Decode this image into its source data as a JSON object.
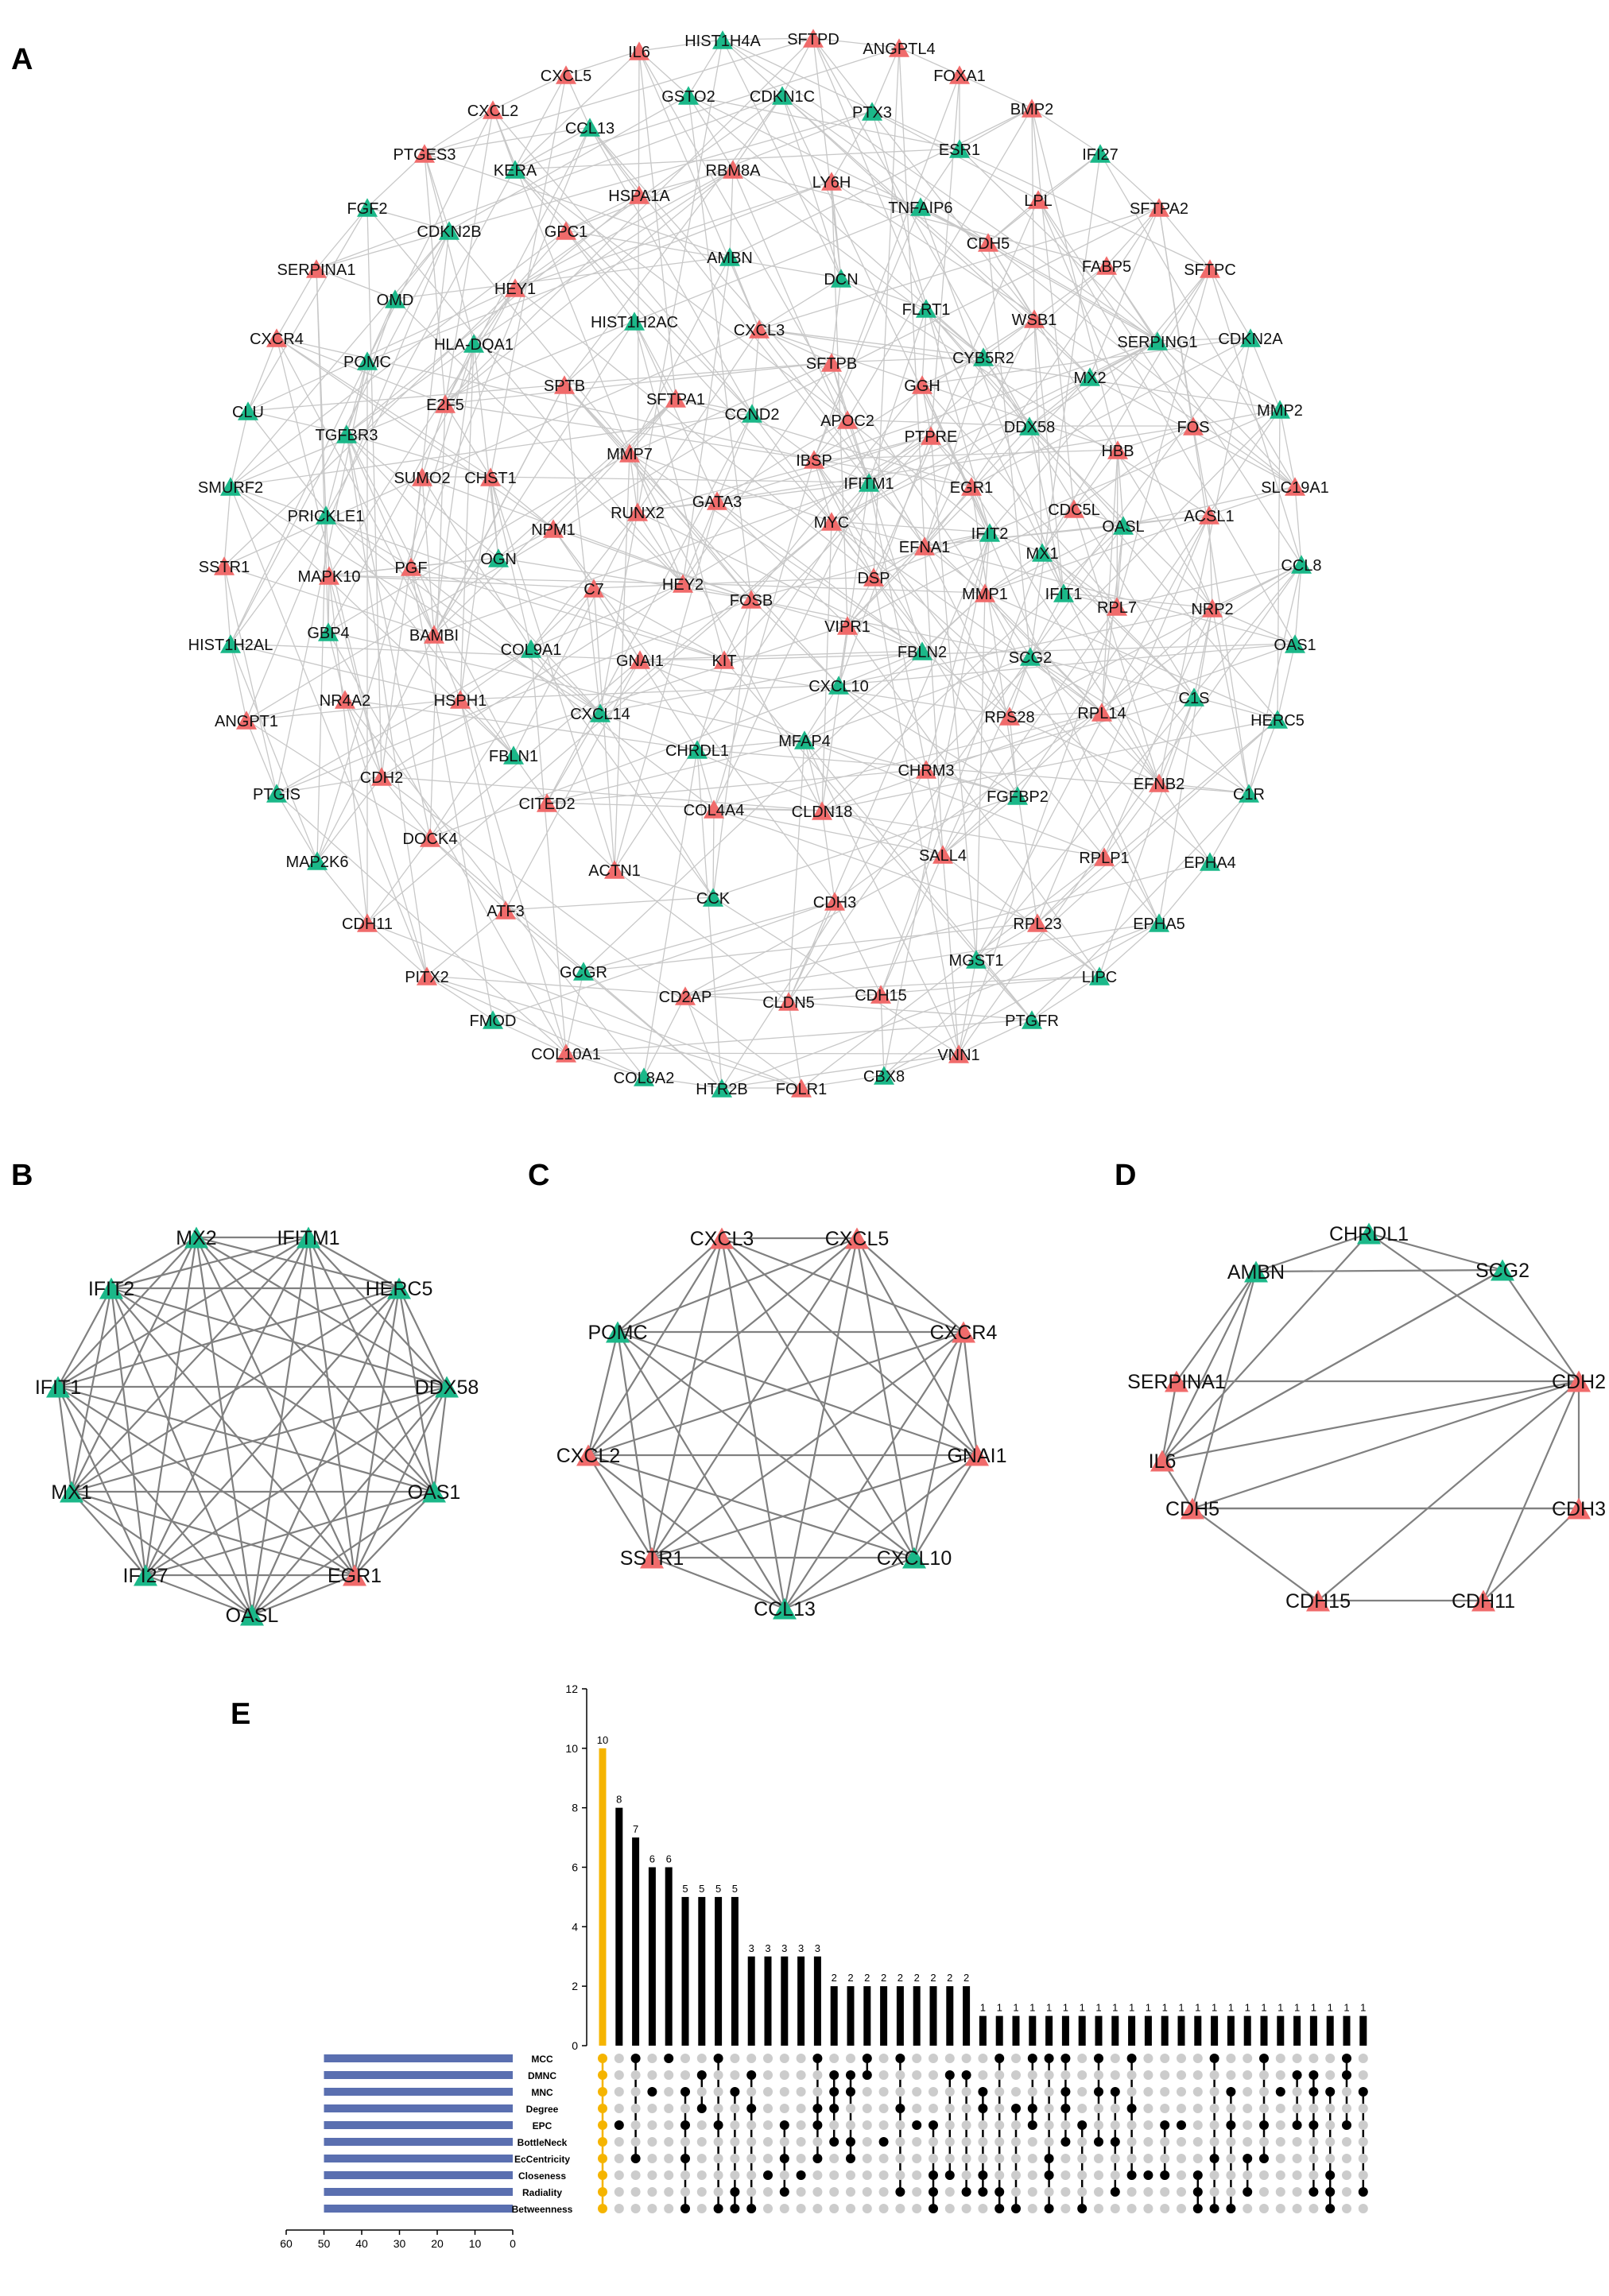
{
  "panels": {
    "a": {
      "label": "A"
    },
    "b": {
      "label": "B"
    },
    "c": {
      "label": "C"
    },
    "d": {
      "label": "D"
    },
    "e": {
      "label": "E"
    }
  },
  "colors": {
    "up": "#f06b6b",
    "down": "#1bb889",
    "edge": "#c8c8c8",
    "hub_edge": "#808080",
    "highlight_bar": "#f5b400",
    "bar": "#000000",
    "set_bar": "#5a6fb0",
    "dot_on": "#000000",
    "dot_off": "#cccccc"
  },
  "network_a": {
    "nodes": [
      {
        "id": "IL6",
        "type": "up"
      },
      {
        "id": "HIST1H4A",
        "type": "down"
      },
      {
        "id": "SFTPD",
        "type": "up"
      },
      {
        "id": "ANGPTL4",
        "type": "up"
      },
      {
        "id": "CXCL5",
        "type": "up"
      },
      {
        "id": "GSTO2",
        "type": "down"
      },
      {
        "id": "CDKN1C",
        "type": "down"
      },
      {
        "id": "FOXA1",
        "type": "up"
      },
      {
        "id": "CXCL2",
        "type": "up"
      },
      {
        "id": "CCL13",
        "type": "down"
      },
      {
        "id": "PTX3",
        "type": "down"
      },
      {
        "id": "BMP2",
        "type": "up"
      },
      {
        "id": "PTGES3",
        "type": "up"
      },
      {
        "id": "ESR1",
        "type": "down"
      },
      {
        "id": "IFI27",
        "type": "down"
      },
      {
        "id": "KERA",
        "type": "down"
      },
      {
        "id": "RBM8A",
        "type": "up"
      },
      {
        "id": "LY6H",
        "type": "up"
      },
      {
        "id": "HSPA1A",
        "type": "up"
      },
      {
        "id": "LPL",
        "type": "up"
      },
      {
        "id": "SFTPA2",
        "type": "up"
      },
      {
        "id": "FGF2",
        "type": "down"
      },
      {
        "id": "TNFAIP6",
        "type": "down"
      },
      {
        "id": "CDKN2B",
        "type": "down"
      },
      {
        "id": "GPC1",
        "type": "up"
      },
      {
        "id": "CDH5",
        "type": "up"
      },
      {
        "id": "AMBN",
        "type": "down"
      },
      {
        "id": "SERPINA1",
        "type": "up"
      },
      {
        "id": "FABP5",
        "type": "up"
      },
      {
        "id": "SFTPC",
        "type": "up"
      },
      {
        "id": "HEY1",
        "type": "up"
      },
      {
        "id": "DCN",
        "type": "down"
      },
      {
        "id": "OMD",
        "type": "down"
      },
      {
        "id": "FLRT1",
        "type": "down"
      },
      {
        "id": "WSB1",
        "type": "up"
      },
      {
        "id": "HIST1H2AC",
        "type": "down"
      },
      {
        "id": "CXCL3",
        "type": "up"
      },
      {
        "id": "CXCR4",
        "type": "up"
      },
      {
        "id": "CDKN2A",
        "type": "down"
      },
      {
        "id": "HLA-DQA1",
        "type": "down"
      },
      {
        "id": "SERPING1",
        "type": "down"
      },
      {
        "id": "POMC",
        "type": "down"
      },
      {
        "id": "SFTPB",
        "type": "up"
      },
      {
        "id": "CYB5R2",
        "type": "down"
      },
      {
        "id": "MX2",
        "type": "down"
      },
      {
        "id": "SPTB",
        "type": "up"
      },
      {
        "id": "GGH",
        "type": "up"
      },
      {
        "id": "E2F5",
        "type": "up"
      },
      {
        "id": "SFTPA1",
        "type": "up"
      },
      {
        "id": "CLU",
        "type": "down"
      },
      {
        "id": "MMP2",
        "type": "down"
      },
      {
        "id": "CCND2",
        "type": "down"
      },
      {
        "id": "APOC2",
        "type": "up"
      },
      {
        "id": "DDX58",
        "type": "down"
      },
      {
        "id": "FOS",
        "type": "up"
      },
      {
        "id": "TGFBR3",
        "type": "down"
      },
      {
        "id": "PTPRE",
        "type": "up"
      },
      {
        "id": "HBB",
        "type": "up"
      },
      {
        "id": "MMP7",
        "type": "up"
      },
      {
        "id": "IBSP",
        "type": "up"
      },
      {
        "id": "SMURF2",
        "type": "down"
      },
      {
        "id": "SUMO2",
        "type": "up"
      },
      {
        "id": "CHST1",
        "type": "up"
      },
      {
        "id": "IFITM1",
        "type": "down"
      },
      {
        "id": "EGR1",
        "type": "up"
      },
      {
        "id": "SLC19A1",
        "type": "up"
      },
      {
        "id": "GATA3",
        "type": "up"
      },
      {
        "id": "CDC5L",
        "type": "up"
      },
      {
        "id": "ACSL1",
        "type": "up"
      },
      {
        "id": "PRICKLE1",
        "type": "down"
      },
      {
        "id": "RUNX2",
        "type": "up"
      },
      {
        "id": "MYC",
        "type": "up"
      },
      {
        "id": "NPM1",
        "type": "up"
      },
      {
        "id": "OASL",
        "type": "down"
      },
      {
        "id": "IFIT2",
        "type": "down"
      },
      {
        "id": "EFNA1",
        "type": "up"
      },
      {
        "id": "MX1",
        "type": "down"
      },
      {
        "id": "SSTR1",
        "type": "up"
      },
      {
        "id": "PGF",
        "type": "up"
      },
      {
        "id": "OGN",
        "type": "down"
      },
      {
        "id": "CCL8",
        "type": "down"
      },
      {
        "id": "MAPK10",
        "type": "up"
      },
      {
        "id": "DSP",
        "type": "up"
      },
      {
        "id": "C7",
        "type": "up"
      },
      {
        "id": "HEY2",
        "type": "up"
      },
      {
        "id": "FOSB",
        "type": "up"
      },
      {
        "id": "MMP1",
        "type": "up"
      },
      {
        "id": "IFIT1",
        "type": "down"
      },
      {
        "id": "RPL7",
        "type": "up"
      },
      {
        "id": "NRP2",
        "type": "up"
      },
      {
        "id": "BAMBI",
        "type": "up"
      },
      {
        "id": "VIPR1",
        "type": "up"
      },
      {
        "id": "OAS1",
        "type": "down"
      },
      {
        "id": "HIST1H2AL",
        "type": "down"
      },
      {
        "id": "GBP4",
        "type": "down"
      },
      {
        "id": "COL9A1",
        "type": "down"
      },
      {
        "id": "GNAI1",
        "type": "up"
      },
      {
        "id": "KIT",
        "type": "up"
      },
      {
        "id": "FBLN2",
        "type": "down"
      },
      {
        "id": "SCG2",
        "type": "down"
      },
      {
        "id": "CXCL10",
        "type": "down"
      },
      {
        "id": "NR4A2",
        "type": "up"
      },
      {
        "id": "HSPH1",
        "type": "up"
      },
      {
        "id": "C1S",
        "type": "down"
      },
      {
        "id": "CXCL14",
        "type": "down"
      },
      {
        "id": "RPS28",
        "type": "up"
      },
      {
        "id": "RPL14",
        "type": "up"
      },
      {
        "id": "HERC5",
        "type": "down"
      },
      {
        "id": "ANGPT1",
        "type": "up"
      },
      {
        "id": "MFAP4",
        "type": "down"
      },
      {
        "id": "FBLN1",
        "type": "down"
      },
      {
        "id": "CHRDL1",
        "type": "down"
      },
      {
        "id": "CHRM3",
        "type": "up"
      },
      {
        "id": "CDH2",
        "type": "up"
      },
      {
        "id": "EFNB2",
        "type": "up"
      },
      {
        "id": "PTGIS",
        "type": "down"
      },
      {
        "id": "C1R",
        "type": "down"
      },
      {
        "id": "CITED2",
        "type": "up"
      },
      {
        "id": "COL4A4",
        "type": "up"
      },
      {
        "id": "CLDN18",
        "type": "up"
      },
      {
        "id": "FGFBP2",
        "type": "down"
      },
      {
        "id": "DOCK4",
        "type": "up"
      },
      {
        "id": "MAP2K6",
        "type": "down"
      },
      {
        "id": "SALL4",
        "type": "up"
      },
      {
        "id": "RPLP1",
        "type": "up"
      },
      {
        "id": "EPHA4",
        "type": "down"
      },
      {
        "id": "ACTN1",
        "type": "up"
      },
      {
        "id": "CCK",
        "type": "down"
      },
      {
        "id": "CDH3",
        "type": "up"
      },
      {
        "id": "CDH11",
        "type": "up"
      },
      {
        "id": "ATF3",
        "type": "up"
      },
      {
        "id": "RPL23",
        "type": "up"
      },
      {
        "id": "EPHA5",
        "type": "down"
      },
      {
        "id": "GCGR",
        "type": "down"
      },
      {
        "id": "MGST1",
        "type": "down"
      },
      {
        "id": "PITX2",
        "type": "up"
      },
      {
        "id": "LIPC",
        "type": "down"
      },
      {
        "id": "CD2AP",
        "type": "up"
      },
      {
        "id": "CLDN5",
        "type": "up"
      },
      {
        "id": "CDH15",
        "type": "up"
      },
      {
        "id": "FMOD",
        "type": "down"
      },
      {
        "id": "PTGFR",
        "type": "down"
      },
      {
        "id": "COL10A1",
        "type": "up"
      },
      {
        "id": "VNN1",
        "type": "up"
      },
      {
        "id": "COL8A2",
        "type": "down"
      },
      {
        "id": "HTR2B",
        "type": "down"
      },
      {
        "id": "FOLR1",
        "type": "up"
      },
      {
        "id": "CBX8",
        "type": "down"
      }
    ]
  },
  "hub_b": {
    "nodes": [
      {
        "id": "MX2",
        "type": "down"
      },
      {
        "id": "IFITM1",
        "type": "down"
      },
      {
        "id": "HERC5",
        "type": "down"
      },
      {
        "id": "DDX58",
        "type": "down"
      },
      {
        "id": "OAS1",
        "type": "down"
      },
      {
        "id": "EGR1",
        "type": "up"
      },
      {
        "id": "OASL",
        "type": "down"
      },
      {
        "id": "IFI27",
        "type": "down"
      },
      {
        "id": "MX1",
        "type": "down"
      },
      {
        "id": "IFIT1",
        "type": "down"
      },
      {
        "id": "IFIT2",
        "type": "down"
      }
    ]
  },
  "hub_c": {
    "nodes": [
      {
        "id": "CXCL3",
        "type": "up"
      },
      {
        "id": "CXCL5",
        "type": "up"
      },
      {
        "id": "CXCR4",
        "type": "up"
      },
      {
        "id": "GNAI1",
        "type": "up"
      },
      {
        "id": "CXCL10",
        "type": "down"
      },
      {
        "id": "CCL13",
        "type": "down"
      },
      {
        "id": "SSTR1",
        "type": "up"
      },
      {
        "id": "CXCL2",
        "type": "up"
      },
      {
        "id": "POMC",
        "type": "down"
      }
    ]
  },
  "hub_d": {
    "nodes": [
      {
        "id": "CHRDL1",
        "type": "down"
      },
      {
        "id": "SCG2",
        "type": "down"
      },
      {
        "id": "CDH2",
        "type": "up"
      },
      {
        "id": "CDH3",
        "type": "up"
      },
      {
        "id": "CDH11",
        "type": "up"
      },
      {
        "id": "CDH15",
        "type": "up"
      },
      {
        "id": "CDH5",
        "type": "up"
      },
      {
        "id": "IL6",
        "type": "up"
      },
      {
        "id": "SERPINA1",
        "type": "up"
      },
      {
        "id": "AMBN",
        "type": "down"
      }
    ]
  },
  "chart_data": {
    "type": "bar",
    "subtype": "upset",
    "intersection_values": [
      10,
      8,
      7,
      6,
      6,
      5,
      5,
      5,
      5,
      3,
      3,
      3,
      3,
      3,
      2,
      2,
      2,
      2,
      2,
      2,
      2,
      2,
      2,
      1,
      1,
      1,
      1,
      1,
      1,
      1,
      1,
      1,
      1,
      1,
      1,
      1,
      1,
      1,
      1,
      1,
      1,
      1,
      1,
      1,
      1,
      1,
      1
    ],
    "highlight_index": 0,
    "yticks": [
      0,
      2,
      4,
      6,
      8,
      10,
      12
    ],
    "ylim": [
      0,
      12
    ],
    "sets": [
      "MCC",
      "DMNC",
      "MNC",
      "Degree",
      "EPC",
      "BottleNeck",
      "EcCentricity",
      "Closeness",
      "Radiality",
      "Betweenness"
    ],
    "set_sizes": [
      50,
      50,
      50,
      50,
      50,
      50,
      50,
      50,
      50,
      50
    ],
    "set_size_ticks": [
      60,
      50,
      40,
      30,
      20,
      10,
      0
    ],
    "set_size_xlim": [
      60,
      0
    ]
  }
}
